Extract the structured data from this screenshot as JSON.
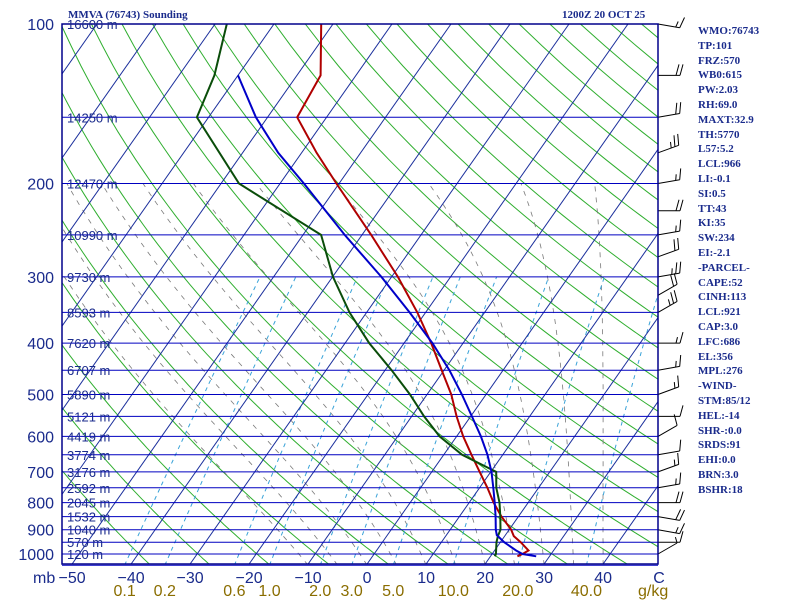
{
  "header": {
    "station": "MMVA (76743) Sounding",
    "datetime": "1200Z 20 OCT 25"
  },
  "indices": [
    "WMO:76743",
    "TP:101",
    "FRZ:570",
    "WB0:615",
    "PW:2.03",
    "RH:69.0",
    "MAXT:32.9",
    "TH:5770",
    "L57:5.2",
    "LCL:966",
    "LI:-0.1",
    "SI:0.5",
    "TT:43",
    "KI:35",
    "SW:234",
    "EI:-2.1",
    "-PARCEL-",
    "CAPE:52",
    "CINH:113",
    "LCL:921",
    "CAP:3.0",
    "LFC:686",
    "EL:356",
    "MPL:276",
    "-WIND-",
    "STM:85/12",
    "HEL:-14",
    "SHR-:0.0",
    "SRDS:91",
    "EHI:0.0",
    "BRN:3.0",
    "BSHR:18"
  ],
  "colors": {
    "frame": "#00008b",
    "isobar": "#0000c0",
    "isotherm": "#1b2f9c",
    "dry_adiabat": "#2fae2f",
    "moist_adiabat": "#7a7a7a",
    "mixing_ratio": "#3aa3d8",
    "temperature": "#b00000",
    "dewpoint": "#0a4d0a",
    "parcel": "#0000c8",
    "wind": "#000000",
    "axis_text": "#1a2b8c",
    "mixing_text": "#8a6d00"
  },
  "chart_data": {
    "type": "line",
    "title": "MMVA (76743) Sounding",
    "subtitle": "1200Z 20 OCT 25",
    "xlabel": "",
    "ylabel": "mb",
    "x_unit": "C",
    "mixing_ratio_unit": "g/kg",
    "pressure_labels": [
      100,
      200,
      300,
      400,
      500,
      600,
      700,
      800,
      900,
      1000
    ],
    "temperature_ticks": [
      -50,
      -40,
      -30,
      -20,
      -10,
      0,
      10,
      20,
      30,
      40
    ],
    "mixing_ratio_labels": [
      "0.1",
      "0.2",
      "0.6",
      "1.0",
      "2.0",
      "3.0",
      "5.0",
      "10.0",
      "20.0",
      "40.0"
    ],
    "mixing_ratio_values": [
      0.1,
      0.2,
      0.6,
      1.0,
      2.0,
      3.0,
      5.0,
      10.0,
      20.0,
      40.0
    ],
    "height_levels": [
      {
        "p": 100,
        "h": "16600 m"
      },
      {
        "p": 150,
        "h": "14250 m"
      },
      {
        "p": 200,
        "h": "12470 m"
      },
      {
        "p": 250,
        "h": "10990 m"
      },
      {
        "p": 300,
        "h": "9730 m"
      },
      {
        "p": 350,
        "h": "8593 m"
      },
      {
        "p": 400,
        "h": "7620 m"
      },
      {
        "p": 450,
        "h": "6707 m"
      },
      {
        "p": 500,
        "h": "5890 m"
      },
      {
        "p": 550,
        "h": "5121 m"
      },
      {
        "p": 600,
        "h": "4419 m"
      },
      {
        "p": 650,
        "h": "3774 m"
      },
      {
        "p": 700,
        "h": "3176 m"
      },
      {
        "p": 750,
        "h": "2592 m"
      },
      {
        "p": 800,
        "h": "2045 m"
      },
      {
        "p": 850,
        "h": "1532 m"
      },
      {
        "p": 900,
        "h": "1040 m"
      },
      {
        "p": 950,
        "h": "570 m"
      },
      {
        "p": 1000,
        "h": "120 m"
      }
    ],
    "series": [
      {
        "name": "Temperature",
        "points": [
          [
            1010,
            24.4
          ],
          [
            1000,
            25.0
          ],
          [
            985,
            25.6
          ],
          [
            950,
            23.3
          ],
          [
            925,
            21.4
          ],
          [
            900,
            20.2
          ],
          [
            850,
            17.0
          ],
          [
            800,
            14.0
          ],
          [
            750,
            11.2
          ],
          [
            700,
            8.0
          ],
          [
            650,
            4.6
          ],
          [
            600,
            1.0
          ],
          [
            550,
            -2.5
          ],
          [
            500,
            -6.0
          ],
          [
            450,
            -10.5
          ],
          [
            400,
            -15.5
          ],
          [
            350,
            -21.5
          ],
          [
            300,
            -29.0
          ],
          [
            250,
            -38.5
          ],
          [
            200,
            -50.5
          ],
          [
            175,
            -57.5
          ],
          [
            150,
            -65.0
          ],
          [
            125,
            -66.0
          ],
          [
            100,
            -72.0
          ]
        ]
      },
      {
        "name": "Dewpoint",
        "points": [
          [
            1010,
            20.6
          ],
          [
            1000,
            20.5
          ],
          [
            950,
            19.2
          ],
          [
            925,
            18.7
          ],
          [
            900,
            18.4
          ],
          [
            850,
            16.8
          ],
          [
            800,
            15.0
          ],
          [
            750,
            12.7
          ],
          [
            700,
            10.8
          ],
          [
            650,
            3.0
          ],
          [
            600,
            -3.0
          ],
          [
            550,
            -8.0
          ],
          [
            500,
            -13.0
          ],
          [
            450,
            -19.0
          ],
          [
            400,
            -26.0
          ],
          [
            350,
            -33.0
          ],
          [
            300,
            -40.0
          ],
          [
            250,
            -47.0
          ],
          [
            200,
            -67.0
          ],
          [
            150,
            -82.0
          ],
          [
            125,
            -84.0
          ],
          [
            100,
            -88.0
          ]
        ]
      },
      {
        "name": "Parcel",
        "points": [
          [
            1010,
            27.6
          ],
          [
            1000,
            25.0
          ],
          [
            985,
            23.5
          ],
          [
            950,
            20.5
          ],
          [
            921,
            18.4
          ],
          [
            900,
            17.6
          ],
          [
            850,
            16.0
          ],
          [
            800,
            14.2
          ],
          [
            750,
            12.2
          ],
          [
            700,
            10.0
          ],
          [
            650,
            7.3
          ],
          [
            600,
            4.0
          ],
          [
            550,
            0.1
          ],
          [
            500,
            -4.2
          ],
          [
            450,
            -9.2
          ],
          [
            400,
            -15.3
          ],
          [
            350,
            -22.8
          ],
          [
            300,
            -31.8
          ],
          [
            250,
            -43.0
          ],
          [
            200,
            -56.0
          ],
          [
            175,
            -64.0
          ],
          [
            150,
            -72.0
          ],
          [
            125,
            -80.0
          ]
        ]
      }
    ],
    "ylim": [
      1050,
      100
    ],
    "xlim": [
      -50,
      50
    ],
    "grid": true,
    "wind_barbs": [
      {
        "p": 100,
        "dir": 100,
        "spd": 15
      },
      {
        "p": 125,
        "dir": 90,
        "spd": 20
      },
      {
        "p": 150,
        "dir": 80,
        "spd": 20
      },
      {
        "p": 175,
        "dir": 70,
        "spd": 25
      },
      {
        "p": 200,
        "dir": 80,
        "spd": 15
      },
      {
        "p": 225,
        "dir": 90,
        "spd": 20
      },
      {
        "p": 250,
        "dir": 80,
        "spd": 15
      },
      {
        "p": 275,
        "dir": 70,
        "spd": 20
      },
      {
        "p": 300,
        "dir": 80,
        "spd": 25
      },
      {
        "p": 325,
        "dir": 60,
        "spd": 20
      },
      {
        "p": 350,
        "dir": 60,
        "spd": 25
      },
      {
        "p": 400,
        "dir": 90,
        "spd": 15
      },
      {
        "p": 450,
        "dir": 80,
        "spd": 15
      },
      {
        "p": 500,
        "dir": 70,
        "spd": 15
      },
      {
        "p": 550,
        "dir": 90,
        "spd": 10
      },
      {
        "p": 600,
        "dir": 60,
        "spd": 10
      },
      {
        "p": 650,
        "dir": 80,
        "spd": 10
      },
      {
        "p": 700,
        "dir": 70,
        "spd": 15
      },
      {
        "p": 750,
        "dir": 80,
        "spd": 15
      },
      {
        "p": 800,
        "dir": 90,
        "spd": 20
      },
      {
        "p": 850,
        "dir": 100,
        "spd": 20
      },
      {
        "p": 900,
        "dir": 100,
        "spd": 15
      },
      {
        "p": 950,
        "dir": 90,
        "spd": 10
      },
      {
        "p": 1000,
        "dir": 60,
        "spd": 5
      }
    ]
  }
}
